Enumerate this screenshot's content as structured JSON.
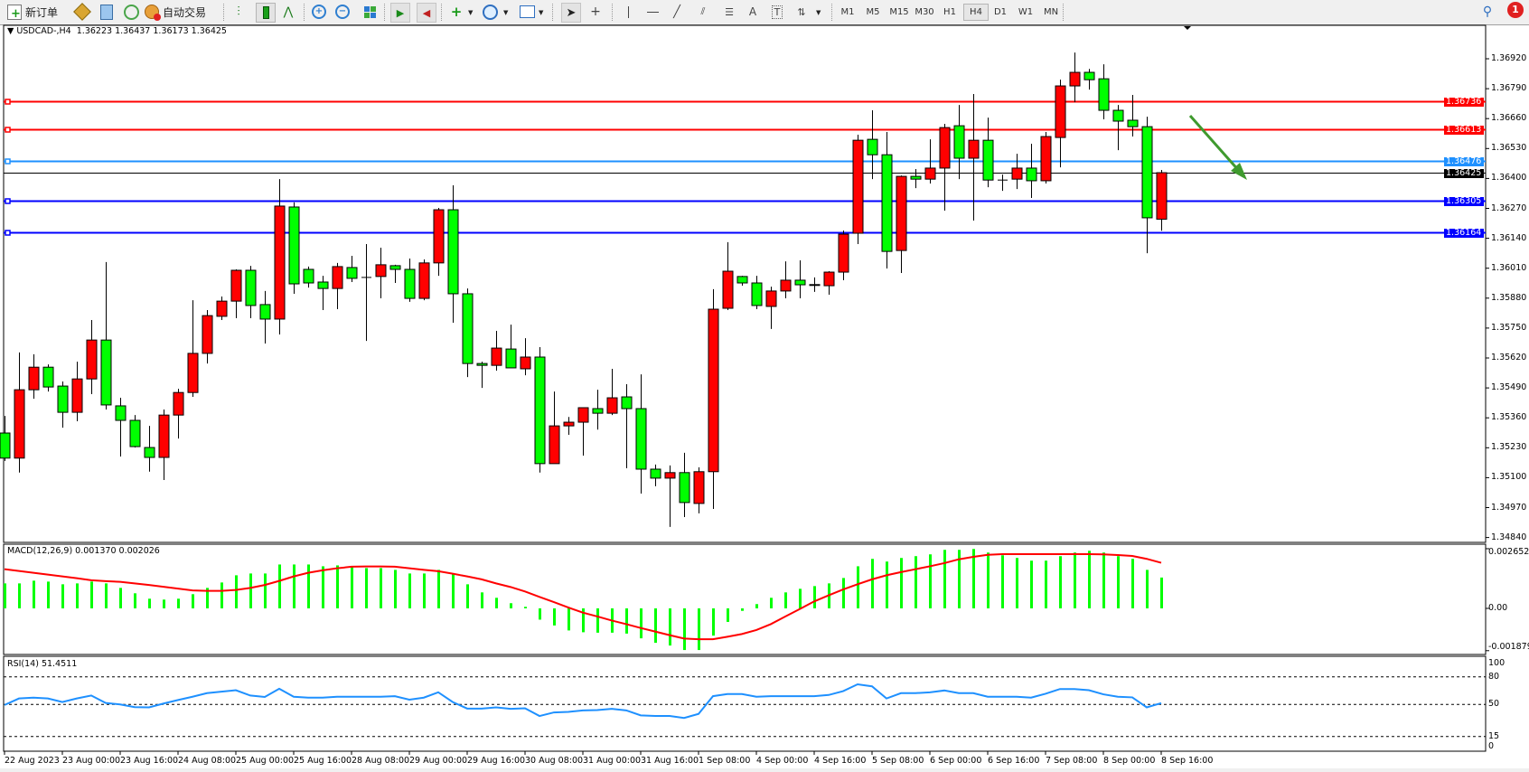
{
  "toolbar": {
    "new_order_label": "新订单",
    "auto_trading_label": "自动交易",
    "timeframes": [
      "M1",
      "M5",
      "M15",
      "M30",
      "H1",
      "H4",
      "D1",
      "W1",
      "MN"
    ],
    "active_timeframe": "H4",
    "notification_count": "1",
    "icons": [
      "new-order-icon",
      "market-watch-icon",
      "navigator-icon",
      "signals-icon",
      "auto-trading-icon",
      "bar-chart-icon",
      "candlestick-icon",
      "line-chart-icon",
      "zoom-in-icon",
      "zoom-out-icon",
      "tile-windows-icon",
      "auto-scroll-icon",
      "chart-shift-icon",
      "indicators-icon",
      "periods-icon",
      "templates-icon",
      "cursor-icon",
      "crosshair-icon",
      "vertical-line-icon",
      "horizontal-line-icon",
      "trendline-icon",
      "fibonacci-icon",
      "fibo-channel-icon",
      "text-icon",
      "text-label-icon",
      "arrows-icon",
      "search-icon",
      "notification-icon"
    ]
  },
  "chart": {
    "symbol": "USDCAD-,H4",
    "ohlc": "1.36223 1.36437 1.36173 1.36425",
    "colors": {
      "bull": "#ff0000",
      "bear": "#00ff00",
      "resistance": "#ff0000",
      "mid": "#1e90ff",
      "support": "#0000ff",
      "bid": "#000000",
      "arrow": "#3f9a2e"
    },
    "price_ticks": [
      "1.36920",
      "1.36790",
      "1.36660",
      "1.36530",
      "1.36400",
      "1.36270",
      "1.36140",
      "1.36010",
      "1.35880",
      "1.35750",
      "1.35620",
      "1.35490",
      "1.35360",
      "1.35230",
      "1.35100",
      "1.34970",
      "1.34840"
    ],
    "hlines": [
      {
        "price": "1.36736",
        "color": "#ff0000"
      },
      {
        "price": "1.36613",
        "color": "#ff0000"
      },
      {
        "price": "1.36476",
        "color": "#1e90ff"
      },
      {
        "price": "1.36425",
        "color": "#000000"
      },
      {
        "price": "1.36305",
        "color": "#0000ff"
      },
      {
        "price": "1.36164",
        "color": "#0000ff"
      }
    ],
    "time_labels": [
      "22 Aug 2023",
      "23 Aug 00:00",
      "23 Aug 16:00",
      "24 Aug 08:00",
      "25 Aug 00:00",
      "25 Aug 16:00",
      "28 Aug 08:00",
      "29 Aug 00:00",
      "29 Aug 16:00",
      "30 Aug 08:00",
      "31 Aug 00:00",
      "31 Aug 16:00",
      "1 Sep 08:00",
      "4 Sep 00:00",
      "4 Sep 16:00",
      "5 Sep 08:00",
      "6 Sep 00:00",
      "6 Sep 16:00",
      "7 Sep 08:00",
      "8 Sep 00:00",
      "8 Sep 16:00"
    ],
    "candles_ohlc": [
      [
        1.35294,
        1.35368,
        1.35173,
        1.35185
      ],
      [
        1.35185,
        1.35644,
        1.35122,
        1.35482
      ],
      [
        1.35482,
        1.35636,
        1.35443,
        1.3558
      ],
      [
        1.3558,
        1.35592,
        1.35474,
        1.35494
      ],
      [
        1.35498,
        1.35518,
        1.35317,
        1.35384
      ],
      [
        1.35384,
        1.35604,
        1.35345,
        1.35529
      ],
      [
        1.35529,
        1.35785,
        1.35463,
        1.35698
      ],
      [
        1.35698,
        1.36037,
        1.35396,
        1.35416
      ],
      [
        1.35412,
        1.35447,
        1.35192,
        1.35349
      ],
      [
        1.35349,
        1.35372,
        1.35231,
        1.35235
      ],
      [
        1.35231,
        1.35325,
        1.35126,
        1.35188
      ],
      [
        1.35188,
        1.35396,
        1.3509,
        1.35372
      ],
      [
        1.35372,
        1.35486,
        1.3527,
        1.3547
      ],
      [
        1.3547,
        1.35871,
        1.35451,
        1.3564
      ],
      [
        1.3564,
        1.35828,
        1.35596,
        1.35804
      ],
      [
        1.35801,
        1.35887,
        1.35785,
        1.35867
      ],
      [
        1.35867,
        1.36005,
        1.35793,
        1.36001
      ],
      [
        1.36001,
        1.3602,
        1.35793,
        1.35848
      ],
      [
        1.35852,
        1.35911,
        1.35683,
        1.35789
      ],
      [
        1.35789,
        1.36397,
        1.35722,
        1.3628
      ],
      [
        1.36276,
        1.36296,
        1.35899,
        1.35942
      ],
      [
        1.36005,
        1.36017,
        1.35926,
        1.35946
      ],
      [
        1.3595,
        1.35977,
        1.35828,
        1.35922
      ],
      [
        1.35922,
        1.36033,
        1.35832,
        1.36017
      ],
      [
        1.36013,
        1.36064,
        1.3595,
        1.35966
      ],
      [
        1.3597,
        1.36115,
        1.35694,
        1.3597
      ],
      [
        1.35974,
        1.36099,
        1.35879,
        1.36025
      ],
      [
        1.36021,
        1.36025,
        1.35946,
        1.36005
      ],
      [
        1.36005,
        1.36052,
        1.35864,
        1.35879
      ],
      [
        1.35879,
        1.36048,
        1.35871,
        1.36033
      ],
      [
        1.36033,
        1.36272,
        1.35977,
        1.36264
      ],
      [
        1.36264,
        1.3637,
        1.35773,
        1.35899
      ],
      [
        1.35899,
        1.35922,
        1.35537,
        1.35596
      ],
      [
        1.35596,
        1.35604,
        1.3549,
        1.35588
      ],
      [
        1.35588,
        1.35738,
        1.35565,
        1.35663
      ],
      [
        1.35659,
        1.35765,
        1.35577,
        1.35577
      ],
      [
        1.35573,
        1.35706,
        1.35545,
        1.35624
      ],
      [
        1.35624,
        1.35667,
        1.35122,
        1.35161
      ],
      [
        1.35161,
        1.35474,
        1.35161,
        1.35325
      ],
      [
        1.35325,
        1.35364,
        1.35286,
        1.35341
      ],
      [
        1.35341,
        1.35404,
        1.35196,
        1.35404
      ],
      [
        1.354,
        1.35482,
        1.35309,
        1.3538
      ],
      [
        1.3538,
        1.35573,
        1.35372,
        1.35447
      ],
      [
        1.35451,
        1.35506,
        1.35141,
        1.354
      ],
      [
        1.354,
        1.35549,
        1.35031,
        1.35137
      ],
      [
        1.35137,
        1.35157,
        1.35063,
        1.35098
      ],
      [
        1.35098,
        1.35153,
        1.34886,
        1.35122
      ],
      [
        1.35122,
        1.35208,
        1.34929,
        1.34992
      ],
      [
        1.34988,
        1.35145,
        1.34945,
        1.35126
      ],
      [
        1.35126,
        1.35919,
        1.34964,
        1.35832
      ],
      [
        1.35836,
        1.36123,
        1.35828,
        1.35997
      ],
      [
        1.35974,
        1.35977,
        1.35934,
        1.35946
      ],
      [
        1.35946,
        1.35977,
        1.35832,
        1.35848
      ],
      [
        1.35844,
        1.3593,
        1.35746,
        1.35911
      ],
      [
        1.35911,
        1.3604,
        1.35879,
        1.35958
      ],
      [
        1.35958,
        1.36044,
        1.35879,
        1.35938
      ],
      [
        1.35939,
        1.3597,
        1.35907,
        1.35938
      ],
      [
        1.35934,
        1.35997,
        1.35895,
        1.35993
      ],
      [
        1.35993,
        1.36174,
        1.35958,
        1.36158
      ],
      [
        1.36162,
        1.3659,
        1.36115,
        1.36566
      ],
      [
        1.3657,
        1.36696,
        1.36397,
        1.36503
      ],
      [
        1.36503,
        1.36602,
        1.36009,
        1.36083
      ],
      [
        1.36087,
        1.36413,
        1.35989,
        1.36409
      ],
      [
        1.36409,
        1.36441,
        1.36358,
        1.36397
      ],
      [
        1.36397,
        1.3657,
        1.36378,
        1.36445
      ],
      [
        1.36445,
        1.36637,
        1.3626,
        1.36621
      ],
      [
        1.36629,
        1.36719,
        1.36397,
        1.36488
      ],
      [
        1.36488,
        1.36767,
        1.36217,
        1.36566
      ],
      [
        1.36566,
        1.36664,
        1.36362,
        1.36393
      ],
      [
        1.36393,
        1.36417,
        1.36346,
        1.36393
      ],
      [
        1.36397,
        1.36507,
        1.36354,
        1.36445
      ],
      [
        1.36445,
        1.36551,
        1.36315,
        1.3639
      ],
      [
        1.3639,
        1.36602,
        1.36378,
        1.36582
      ],
      [
        1.36578,
        1.36829,
        1.36448,
        1.36802
      ],
      [
        1.36802,
        1.36947,
        1.36731,
        1.36861
      ],
      [
        1.36861,
        1.36876,
        1.36786,
        1.36829
      ],
      [
        1.36833,
        1.36896,
        1.36657,
        1.36696
      ],
      [
        1.36696,
        1.36719,
        1.36523,
        1.36649
      ],
      [
        1.36653,
        1.36763,
        1.36582,
        1.36625
      ],
      [
        1.36625,
        1.36668,
        1.36075,
        1.36229
      ],
      [
        1.36223,
        1.36437,
        1.36173,
        1.36425
      ]
    ]
  },
  "macd": {
    "title": "MACD(12,26,9) 0.001370 0.002026",
    "axis_labels": [
      "0.002652",
      "0.00",
      "-0.001879"
    ],
    "histogram": [
      0.00111,
      0.00111,
      0.00123,
      0.00119,
      0.00107,
      0.00111,
      0.00119,
      0.00111,
      0.00091,
      0.00067,
      0.00043,
      0.00039,
      0.00043,
      0.00063,
      0.00091,
      0.00115,
      0.00147,
      0.00155,
      0.00155,
      0.00195,
      0.00195,
      0.00195,
      0.00187,
      0.00191,
      0.00187,
      0.00179,
      0.00179,
      0.00171,
      0.00155,
      0.00155,
      0.00171,
      0.00151,
      0.00107,
      0.00071,
      0.00047,
      0.00023,
      7e-05,
      -0.0005,
      -0.00076,
      -0.00098,
      -0.00106,
      -0.00108,
      -0.00108,
      -0.00112,
      -0.00133,
      -0.00153,
      -0.00165,
      -0.00185,
      -0.00185,
      -0.00121,
      -0.0006,
      -0.00011,
      0.00019,
      0.00047,
      0.00071,
      0.00087,
      0.00099,
      0.00111,
      0.00135,
      0.00187,
      0.0022,
      0.00208,
      0.00224,
      0.00232,
      0.0024,
      0.0026,
      0.0026,
      0.00264,
      0.00248,
      0.00236,
      0.00224,
      0.00212,
      0.00212,
      0.00232,
      0.00248,
      0.00256,
      0.00248,
      0.00232,
      0.0022,
      0.00171,
      0.00137
    ],
    "signal": [
      0.00174,
      0.00166,
      0.00158,
      0.0015,
      0.00142,
      0.00134,
      0.00125,
      0.00121,
      0.00118,
      0.00111,
      0.00104,
      0.00096,
      0.00088,
      0.0008,
      0.00078,
      0.00078,
      0.00082,
      0.00091,
      0.00104,
      0.00122,
      0.00142,
      0.00158,
      0.00169,
      0.00178,
      0.00185,
      0.00186,
      0.00186,
      0.00185,
      0.00178,
      0.00171,
      0.00165,
      0.00154,
      0.00142,
      0.00129,
      0.00111,
      0.00095,
      0.00075,
      0.00051,
      0.00028,
      4e-05,
      -0.00019,
      -0.00036,
      -0.00054,
      -0.0007,
      -0.00087,
      -0.00103,
      -0.00119,
      -0.00134,
      -0.00137,
      -0.00137,
      -0.00126,
      -0.00114,
      -0.00096,
      -0.0007,
      -0.00036,
      -3e-05,
      0.00031,
      0.00058,
      0.00084,
      0.00107,
      0.00129,
      0.00147,
      0.00161,
      0.00174,
      0.00187,
      0.00201,
      0.00218,
      0.00229,
      0.00238,
      0.00241,
      0.00241,
      0.00241,
      0.00241,
      0.00241,
      0.00241,
      0.00241,
      0.0024,
      0.00237,
      0.00233,
      0.0022,
      0.002026
    ],
    "range": [
      -0.001879,
      0.002652
    ]
  },
  "rsi": {
    "title": "RSI(14) 51.4511",
    "axis_labels": [
      "100",
      "80",
      "50",
      "15",
      "0"
    ],
    "levels": [
      80,
      50,
      15
    ],
    "values": [
      49.4,
      56.5,
      57.4,
      56.5,
      52.6,
      56.5,
      59.7,
      51.6,
      50.0,
      47.1,
      46.8,
      51.0,
      54.8,
      58.4,
      62.3,
      63.9,
      65.5,
      59.7,
      58.1,
      67.1,
      58.4,
      57.4,
      57.4,
      58.4,
      58.4,
      58.4,
      58.4,
      59.0,
      55.2,
      57.4,
      63.2,
      52.6,
      45.5,
      45.5,
      46.8,
      45.2,
      45.8,
      37.4,
      41.3,
      41.9,
      43.5,
      43.9,
      45.2,
      43.5,
      38.1,
      37.4,
      37.4,
      35.2,
      39.7,
      59.0,
      61.3,
      61.3,
      58.4,
      59.0,
      59.0,
      59.0,
      59.0,
      60.3,
      64.5,
      71.9,
      69.7,
      56.5,
      62.3,
      62.3,
      63.2,
      65.2,
      62.3,
      62.3,
      58.4,
      58.4,
      58.4,
      57.4,
      61.6,
      66.8,
      66.8,
      65.5,
      61.0,
      58.4,
      57.7,
      46.8,
      51.4511
    ]
  }
}
